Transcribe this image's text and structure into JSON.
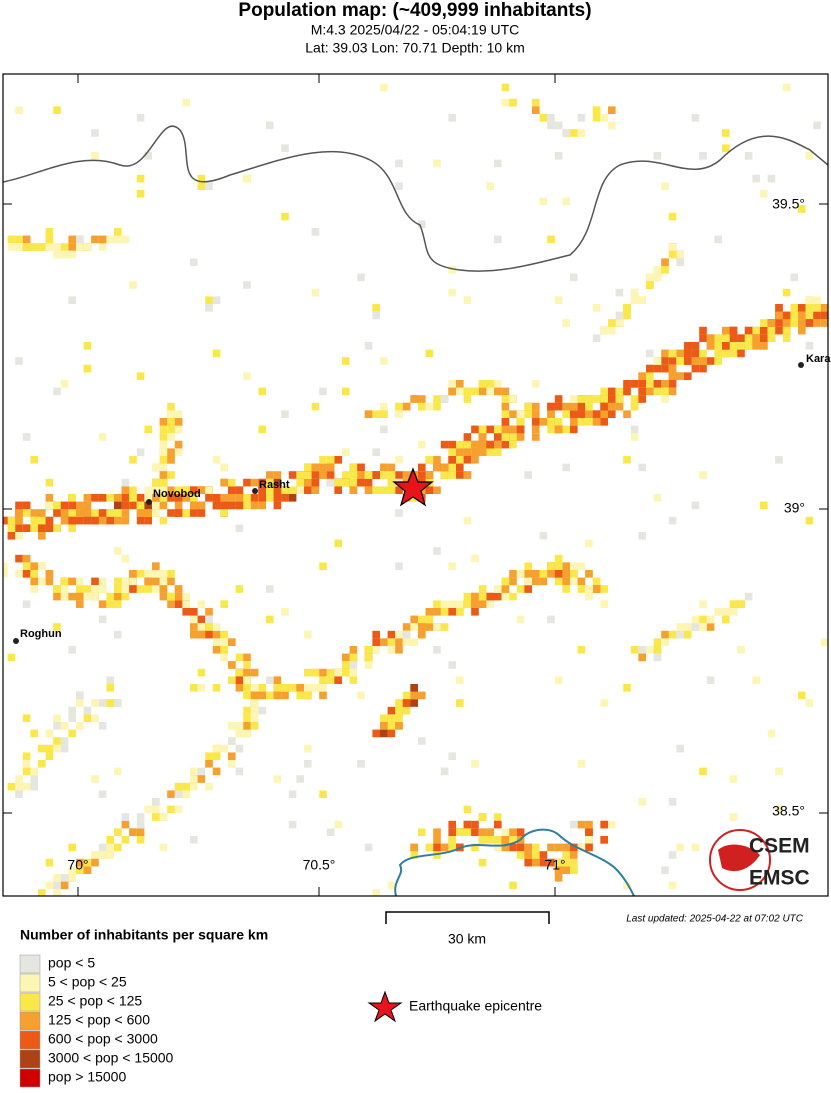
{
  "header": {
    "title": "Population map: (~409,999 inhabitants)",
    "line1": "M:4.3 2025/04/22 - 05:04:19 UTC",
    "line2": "Lat: 39.03 Lon: 70.71 Depth: 10 km"
  },
  "map": {
    "lat_labels": [
      "39.5°",
      "39°",
      "38.5°"
    ],
    "lon_labels": [
      "70°",
      "70.5°",
      "71°"
    ],
    "places": [
      "Kara",
      "Novobod",
      "Rasht",
      "Roghun"
    ],
    "logo": [
      "CSEM",
      "EMSC"
    ]
  },
  "scale": "30 km",
  "updated": "Last updated: 2025-04-22 at 07:02 UTC",
  "legend": {
    "title": "Number of inhabitants per square km",
    "items": [
      "pop < 5",
      "5 < pop < 25",
      "25 < pop < 125",
      "125 < pop < 600",
      "600 < pop < 3000",
      "3000 < pop < 15000",
      "pop > 15000"
    ],
    "epicentre": "Earthquake epicentre"
  }
}
